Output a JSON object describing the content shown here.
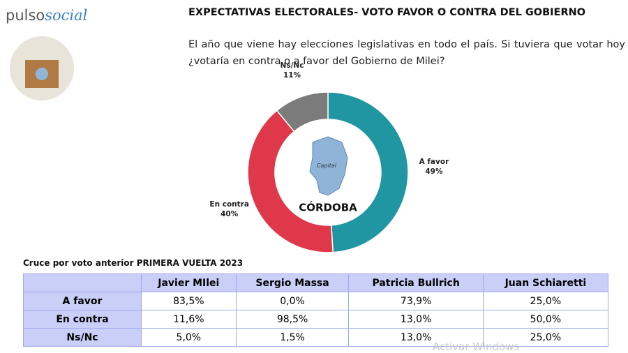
{
  "header": {
    "logo_left": "pulso",
    "logo_right": "social",
    "title": "EXPECTATIVAS ELECTORALES- VOTO FAVOR O CONTRA DEL GOBIERNO",
    "question": "El año que viene hay elecciones legislativas en todo el país. Si tuviera que votar hoy ¿votaría en contra o a favor del Gobierno de Milei?"
  },
  "chart_data": {
    "type": "pie",
    "donut": true,
    "center_label": "CÓRDOBA",
    "map_label": "Capital",
    "categories": [
      "A favor",
      "En contra",
      "Ns/Nc"
    ],
    "values": [
      49,
      40,
      11
    ],
    "value_labels": [
      "49%",
      "40%",
      "11%"
    ],
    "colors": [
      "#1f96a1",
      "#e0384b",
      "#7b7b7b"
    ]
  },
  "table": {
    "title": "Cruce por voto anterior PRIMERA VUELTA 2023",
    "columns": [
      "Javier MIlei",
      "Sergio Massa",
      "Patricia Bullrich",
      "Juan Schiaretti"
    ],
    "rows": [
      {
        "label": "A favor",
        "cells": [
          "83,5%",
          "0,0%",
          "73,9%",
          "25,0%"
        ]
      },
      {
        "label": "En contra",
        "cells": [
          "11,6%",
          "98,5%",
          "13,0%",
          "50,0%"
        ]
      },
      {
        "label": "Ns/Nc",
        "cells": [
          "5,0%",
          "1,5%",
          "13,0%",
          "25,0%"
        ]
      }
    ]
  },
  "watermark": "Activar Windows"
}
